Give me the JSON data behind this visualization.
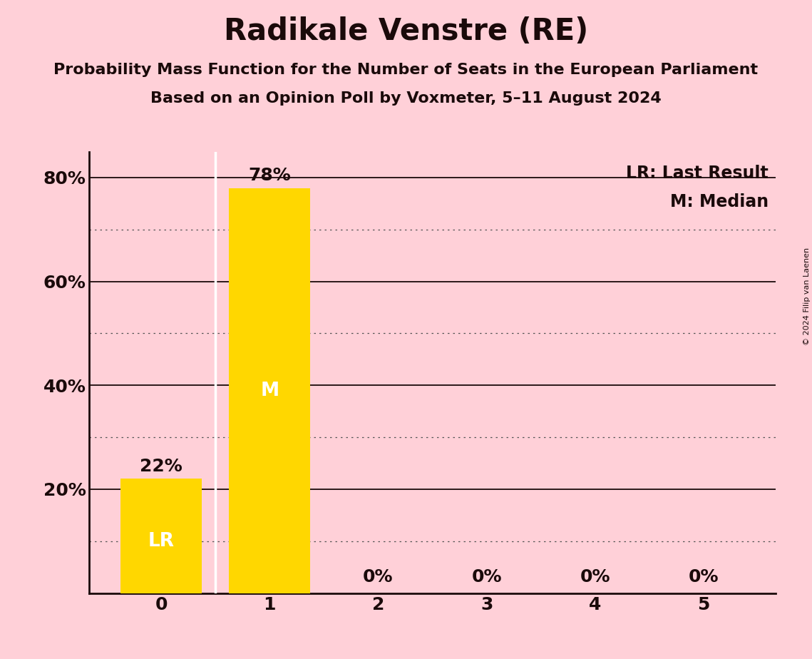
{
  "title": "Radikale Venstre (RE)",
  "subtitle1": "Probability Mass Function for the Number of Seats in the European Parliament",
  "subtitle2": "Based on an Opinion Poll by Voxmeter, 5–11 August 2024",
  "copyright": "© 2024 Filip van Laenen",
  "categories": [
    0,
    1,
    2,
    3,
    4,
    5
  ],
  "values": [
    22,
    78,
    0,
    0,
    0,
    0
  ],
  "bar_color": "#FFD700",
  "background_color": "#FFD0D8",
  "last_result_seat": 0,
  "median_seat": 1,
  "lr_label": "LR",
  "m_label": "M",
  "legend_lr": "LR: Last Result",
  "legend_m": "M: Median",
  "bar_width": 0.75,
  "title_fontsize": 30,
  "subtitle_fontsize": 16,
  "tick_fontsize": 18,
  "label_fontsize": 18,
  "legend_fontsize": 17,
  "copyright_fontsize": 8,
  "text_color": "#1a0a0a",
  "grid_solid_color": "#1a0a0a",
  "grid_dot_color": "#555555",
  "ymax": 85
}
